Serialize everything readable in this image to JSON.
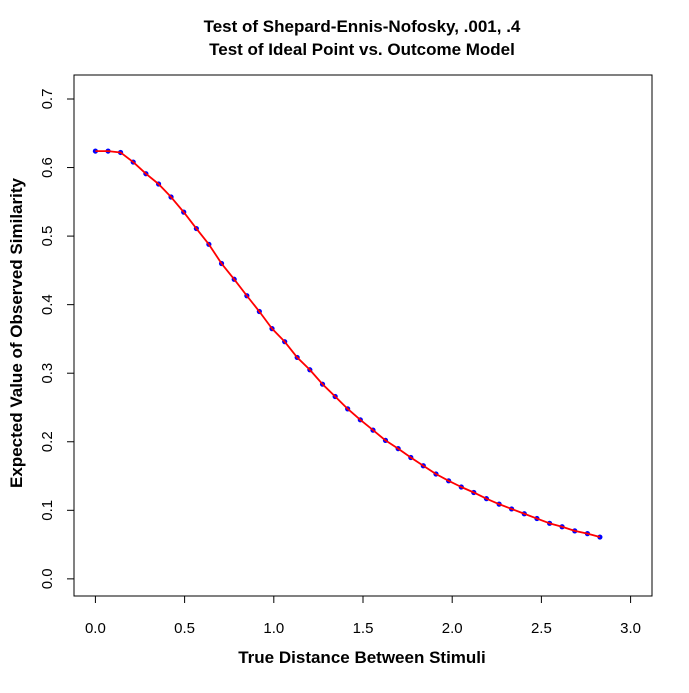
{
  "chart_data": {
    "type": "line",
    "title": "Test of Shepard-Ennis-Nofosky, .001, .4",
    "subtitle": "Test of Ideal Point vs. Outcome Model",
    "xlabel": "True Distance Between Stimuli",
    "ylabel": "Expected Value of Observed Similarity",
    "xlim": [
      -0.12,
      3.12
    ],
    "ylim": [
      -0.025,
      0.735
    ],
    "xticks": [
      0.0,
      0.5,
      1.0,
      1.5,
      2.0,
      2.5,
      3.0
    ],
    "xtick_labels": [
      "0.0",
      "0.5",
      "1.0",
      "1.5",
      "2.0",
      "2.5",
      "3.0"
    ],
    "yticks": [
      0.0,
      0.1,
      0.2,
      0.3,
      0.4,
      0.5,
      0.6,
      0.7
    ],
    "ytick_labels": [
      "0.0",
      "0.1",
      "0.2",
      "0.3",
      "0.4",
      "0.5",
      "0.6",
      "0.7"
    ],
    "grid": false,
    "legend": "none",
    "series": [
      {
        "style": "points",
        "color": "#0000ff",
        "x": [
          0.0,
          0.071,
          0.141,
          0.212,
          0.283,
          0.354,
          0.424,
          0.495,
          0.566,
          0.636,
          0.707,
          0.778,
          0.849,
          0.919,
          0.99,
          1.061,
          1.131,
          1.202,
          1.273,
          1.344,
          1.414,
          1.485,
          1.556,
          1.626,
          1.697,
          1.768,
          1.838,
          1.909,
          1.98,
          2.051,
          2.121,
          2.192,
          2.263,
          2.333,
          2.404,
          2.475,
          2.546,
          2.616,
          2.687,
          2.758,
          2.828
        ],
        "y": [
          0.624,
          0.624,
          0.622,
          0.608,
          0.591,
          0.576,
          0.557,
          0.535,
          0.511,
          0.488,
          0.46,
          0.437,
          0.413,
          0.39,
          0.365,
          0.346,
          0.323,
          0.305,
          0.284,
          0.266,
          0.248,
          0.232,
          0.217,
          0.202,
          0.19,
          0.177,
          0.165,
          0.153,
          0.143,
          0.134,
          0.126,
          0.117,
          0.109,
          0.102,
          0.095,
          0.088,
          0.081,
          0.076,
          0.07,
          0.066,
          0.061
        ]
      },
      {
        "style": "line",
        "color": "#ff0000",
        "x": [
          0.0,
          0.071,
          0.141,
          0.212,
          0.283,
          0.354,
          0.424,
          0.495,
          0.566,
          0.636,
          0.707,
          0.778,
          0.849,
          0.919,
          0.99,
          1.061,
          1.131,
          1.202,
          1.273,
          1.344,
          1.414,
          1.485,
          1.556,
          1.626,
          1.697,
          1.768,
          1.838,
          1.909,
          1.98,
          2.051,
          2.121,
          2.192,
          2.263,
          2.333,
          2.404,
          2.475,
          2.546,
          2.616,
          2.687,
          2.758,
          2.828
        ],
        "y": [
          0.624,
          0.624,
          0.622,
          0.608,
          0.591,
          0.576,
          0.557,
          0.535,
          0.511,
          0.488,
          0.46,
          0.437,
          0.413,
          0.39,
          0.365,
          0.346,
          0.323,
          0.305,
          0.284,
          0.266,
          0.248,
          0.232,
          0.217,
          0.202,
          0.19,
          0.177,
          0.165,
          0.153,
          0.143,
          0.134,
          0.126,
          0.117,
          0.109,
          0.102,
          0.095,
          0.088,
          0.081,
          0.076,
          0.07,
          0.066,
          0.061
        ]
      }
    ]
  }
}
